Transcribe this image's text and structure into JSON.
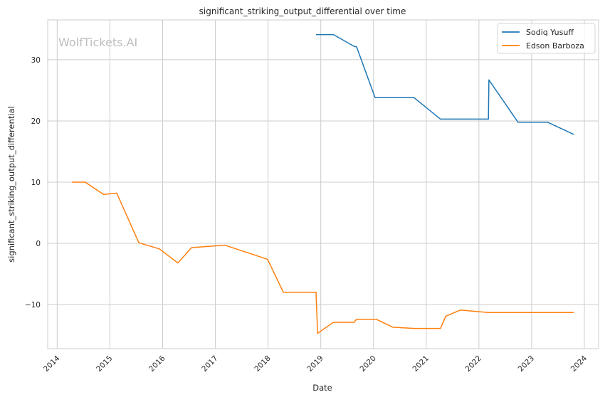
{
  "chart_data": {
    "type": "line",
    "title": "significant_striking_output_differential over time",
    "xlabel": "Date",
    "ylabel": "significant_striking_output_differential",
    "watermark": "WolfTickets.AI",
    "xlim": [
      2013.82,
      2024.27
    ],
    "ylim": [
      -17.2,
      36.5
    ],
    "xticks": [
      2014,
      2015,
      2016,
      2017,
      2018,
      2019,
      2020,
      2021,
      2022,
      2023,
      2024
    ],
    "xtick_labels": [
      "2014",
      "2015",
      "2016",
      "2017",
      "2018",
      "2019",
      "2020",
      "2021",
      "2022",
      "2023",
      "2024"
    ],
    "yticks": [
      -10,
      0,
      10,
      20,
      30
    ],
    "ytick_labels": [
      "−10",
      "0",
      "10",
      "20",
      "30"
    ],
    "grid": true,
    "legend_position": "top-right",
    "series": [
      {
        "name": "Sodiq Yusuff",
        "color": "#1f77b4",
        "x": [
          2018.91,
          2019.24,
          2019.63,
          2019.68,
          2020.03,
          2020.77,
          2021.27,
          2022.18,
          2022.19,
          2022.74,
          2023.3,
          2023.8
        ],
        "y": [
          34.1,
          34.1,
          32.2,
          32.1,
          23.8,
          23.8,
          20.3,
          20.3,
          26.7,
          19.8,
          19.8,
          17.8
        ]
      },
      {
        "name": "Edson Barboza",
        "color": "#ff7f0e",
        "x": [
          2014.28,
          2014.53,
          2014.88,
          2015.13,
          2015.55,
          2015.94,
          2016.29,
          2016.55,
          2017.18,
          2017.99,
          2018.29,
          2018.91,
          2018.94,
          2019.24,
          2019.63,
          2019.68,
          2020.05,
          2020.37,
          2020.77,
          2021.27,
          2021.37,
          2021.65,
          2022.18,
          2023.8
        ],
        "y": [
          10.0,
          10.0,
          8.0,
          8.2,
          0.1,
          -0.9,
          -3.2,
          -0.7,
          -0.3,
          -2.6,
          -8.0,
          -8.0,
          -14.7,
          -12.9,
          -12.9,
          -12.4,
          -12.4,
          -13.7,
          -13.9,
          -13.9,
          -11.9,
          -10.9,
          -11.3,
          -11.3
        ]
      }
    ]
  }
}
